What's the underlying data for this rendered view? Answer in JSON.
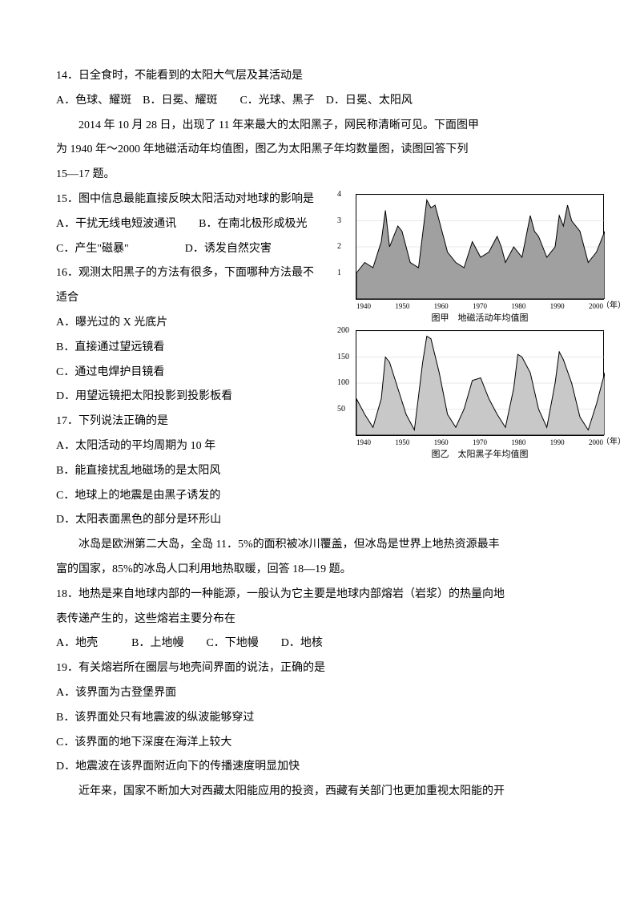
{
  "q14": {
    "text": "14．日全食时，不能看到的太阳大气层及其活动是",
    "options": "A．色球、耀斑　B．日冕、耀斑　　C．光球、黑子　D．日冕、太阳风"
  },
  "passage1": {
    "line1": "2014 年 10 月 28 日，出现了 11 年来最大的太阳黑子，网民称清晰可见。下面图甲",
    "line2": "为 1940 年～2000 年地磁活动年均值图，图乙为太阳黑子年均数量图，读图回答下列",
    "line3": "15—17 题。"
  },
  "q15": {
    "text": "15．图中信息最能直接反映太阳活动对地球的影响是",
    "optA": "A．干扰无线电短波通讯　　B．在南北极形成极光",
    "optC": "C．产生\"磁暴\"　　　　　D．诱发自然灾害"
  },
  "q16": {
    "text": "16．观测太阳黑子的方法有很多，下面哪种方法最不",
    "text2": "适合",
    "optA": "A．曝光过的 X 光底片",
    "optB": "B．直接通过望远镜看",
    "optC": "C．通过电焊护目镜看",
    "optD": "D．用望远镜把太阳投影到投影板看"
  },
  "q17": {
    "text": "17．下列说法正确的是",
    "optA": "A．太阳活动的平均周期为 10 年",
    "optB": "B．能直接扰乱地磁场的是太阳风",
    "optC": "C．地球上的地震是由黑子诱发的",
    "optD": "D．太阳表面黑色的部分是环形山"
  },
  "passage2": {
    "line1": "冰岛是欧洲第二大岛，全岛 11．5%的面积被冰川覆盖，但冰岛是世界上地热资源最丰",
    "line2": "富的国家，85%的冰岛人口利用地热取暖，回答 18—19 题。"
  },
  "q18": {
    "text": "18．地热是来自地球内部的一种能源，一般认为它主要是地球内部熔岩（岩浆）的热量向地",
    "text2": "表传递产生的，这些熔岩主要分布在",
    "options": "A．地壳　　　B．上地幔　　C．下地幔　　D．地核"
  },
  "q19": {
    "text": "19．有关熔岩所在圈层与地壳间界面的说法，正确的是",
    "optA": "A．该界面为古登堡界面",
    "optB": "B．该界面处只有地震波的纵波能够穿过",
    "optC": "C．该界面的地下深度在海洋上较大",
    "optD": "D．地震波在该界面附近向下的传播速度明显加快"
  },
  "passage3": {
    "line1": "近年来，国家不断加大对西藏太阳能应用的投资，西藏有关部门也更加重视太阳能的开"
  },
  "chart1": {
    "type": "area",
    "caption": "图甲　地磁活动年均值图",
    "ylim": [
      0,
      4
    ],
    "yticks": [
      1,
      2,
      3,
      4
    ],
    "xlim": [
      1940,
      2000
    ],
    "xticks": [
      1940,
      1950,
      1960,
      1970,
      1980,
      1990,
      2000
    ],
    "x_unit": "（年）",
    "fill_color": "#a0a0a0",
    "stroke_color": "#000000",
    "background": "#ffffff",
    "grid_color": "#d0d0d0",
    "data": [
      [
        1940,
        1.0
      ],
      [
        1942,
        1.4
      ],
      [
        1944,
        1.2
      ],
      [
        1946,
        2.2
      ],
      [
        1947,
        3.4
      ],
      [
        1948,
        2.0
      ],
      [
        1950,
        2.8
      ],
      [
        1951,
        2.6
      ],
      [
        1952,
        2.0
      ],
      [
        1953,
        1.4
      ],
      [
        1955,
        1.2
      ],
      [
        1957,
        3.8
      ],
      [
        1958,
        3.5
      ],
      [
        1959,
        3.6
      ],
      [
        1960,
        3.0
      ],
      [
        1962,
        1.8
      ],
      [
        1964,
        1.4
      ],
      [
        1966,
        1.2
      ],
      [
        1968,
        2.2
      ],
      [
        1970,
        1.6
      ],
      [
        1972,
        1.8
      ],
      [
        1974,
        2.4
      ],
      [
        1975,
        2.0
      ],
      [
        1976,
        1.4
      ],
      [
        1978,
        2.0
      ],
      [
        1980,
        1.6
      ],
      [
        1982,
        3.2
      ],
      [
        1983,
        2.6
      ],
      [
        1984,
        2.4
      ],
      [
        1986,
        1.6
      ],
      [
        1988,
        2.0
      ],
      [
        1989,
        3.2
      ],
      [
        1990,
        2.8
      ],
      [
        1991,
        3.6
      ],
      [
        1992,
        3.0
      ],
      [
        1994,
        2.6
      ],
      [
        1996,
        1.4
      ],
      [
        1998,
        1.8
      ],
      [
        2000,
        2.6
      ]
    ]
  },
  "chart2": {
    "type": "area",
    "caption": "图乙　太阳黑子年均值图",
    "ylim": [
      0,
      200
    ],
    "yticks": [
      50,
      100,
      150,
      200
    ],
    "xlim": [
      1940,
      2000
    ],
    "xticks": [
      1940,
      1950,
      1960,
      1970,
      1980,
      1990,
      2000
    ],
    "x_unit": "（年）",
    "fill_color": "#c8c8c8",
    "stroke_color": "#000000",
    "background": "#ffffff",
    "grid_color": "#d0d0d0",
    "data": [
      [
        1940,
        70
      ],
      [
        1942,
        40
      ],
      [
        1944,
        15
      ],
      [
        1946,
        70
      ],
      [
        1947,
        150
      ],
      [
        1948,
        140
      ],
      [
        1950,
        90
      ],
      [
        1952,
        40
      ],
      [
        1954,
        10
      ],
      [
        1956,
        140
      ],
      [
        1957,
        190
      ],
      [
        1958,
        185
      ],
      [
        1960,
        120
      ],
      [
        1962,
        40
      ],
      [
        1964,
        15
      ],
      [
        1966,
        50
      ],
      [
        1968,
        105
      ],
      [
        1970,
        110
      ],
      [
        1972,
        70
      ],
      [
        1974,
        40
      ],
      [
        1976,
        15
      ],
      [
        1978,
        90
      ],
      [
        1979,
        155
      ],
      [
        1980,
        150
      ],
      [
        1982,
        120
      ],
      [
        1984,
        50
      ],
      [
        1986,
        15
      ],
      [
        1988,
        100
      ],
      [
        1989,
        160
      ],
      [
        1990,
        145
      ],
      [
        1992,
        100
      ],
      [
        1994,
        35
      ],
      [
        1996,
        10
      ],
      [
        1998,
        60
      ],
      [
        2000,
        120
      ]
    ]
  }
}
